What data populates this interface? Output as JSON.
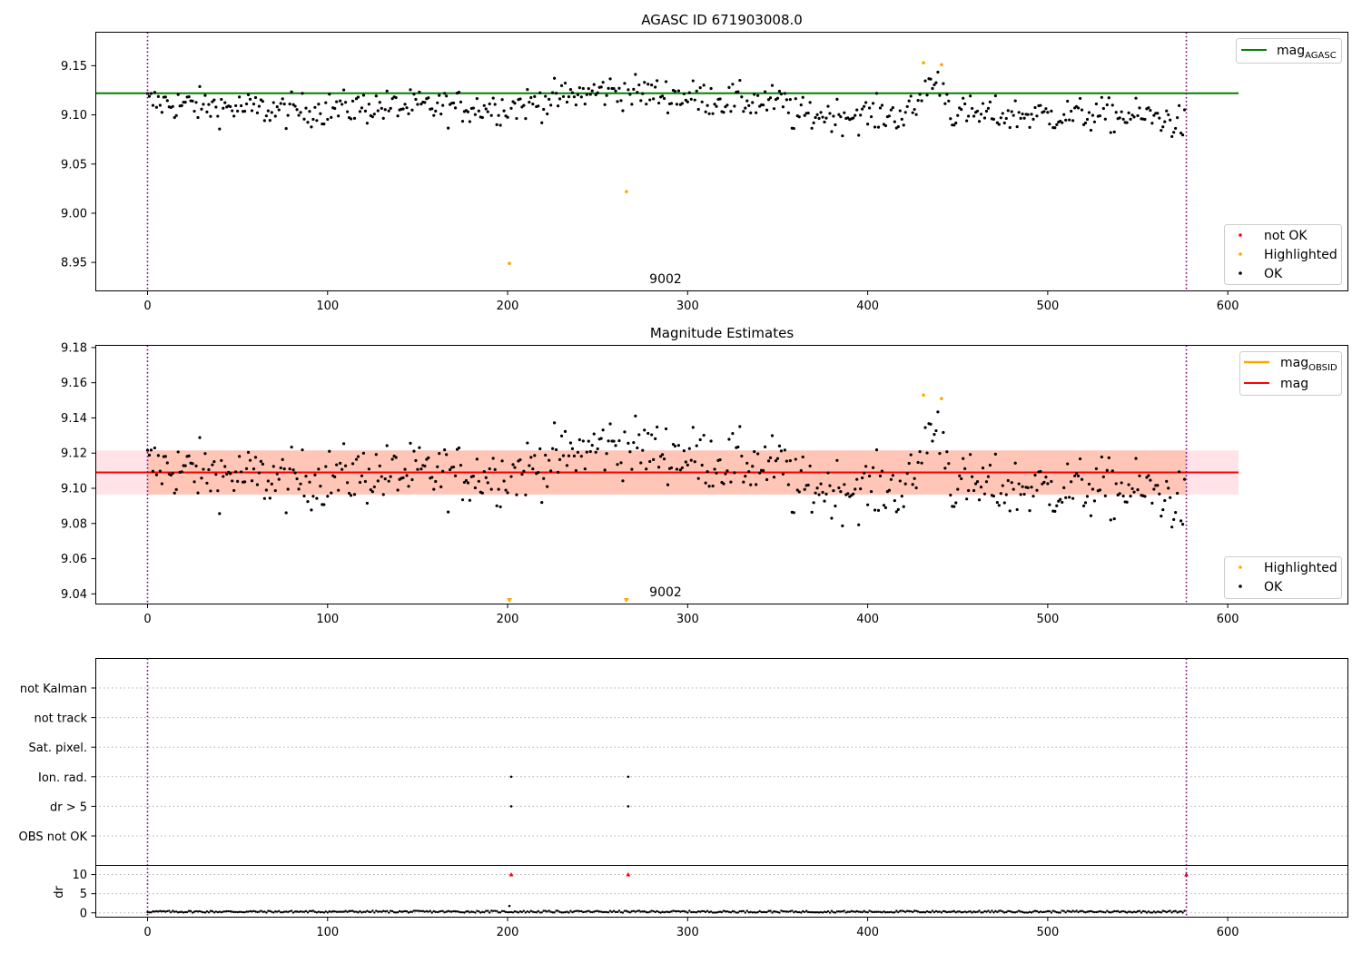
{
  "figure": {
    "title": "AGASC ID 671903008.0",
    "obsid_label": "9002"
  },
  "colors": {
    "ok": "#000000",
    "highlighted": "#ffa500",
    "not_ok": "#ff0000",
    "mag_agasc_line": "#008000",
    "mag_line": "#ff0000",
    "mag_obsid_line": "#ffa500",
    "band_mag_obsid": "#ffa07a",
    "band_mag": "#ffc0cb",
    "obsid_boundary": "#800080",
    "grid": "#b0b0b0"
  },
  "chart_data": [
    {
      "type": "scatter",
      "title": "AGASC ID 671903008.0",
      "xlabel": "",
      "ylabel": "",
      "xlim": [
        -29,
        667
      ],
      "ylim": [
        8.9215,
        9.1845
      ],
      "xticks": [
        0,
        100,
        200,
        300,
        400,
        500,
        600
      ],
      "yticks": [
        8.95,
        9.0,
        9.05,
        9.1,
        9.15
      ],
      "ytick_labels": [
        "8.95",
        "9.00",
        "9.05",
        "9.10",
        "9.15"
      ],
      "hlines": [
        {
          "name": "mag_AGASC",
          "y": 9.122,
          "x_range": [
            -29,
            606
          ],
          "color": "#008000"
        }
      ],
      "vlines": [
        0,
        577
      ],
      "annotations": [
        {
          "text": "9002",
          "x": 288,
          "y": 8.926
        }
      ],
      "legends": [
        {
          "position": "upper right",
          "entries": [
            {
              "label": "mag",
              "subscript": "AGASC",
              "style": "line",
              "color": "#008000"
            }
          ]
        },
        {
          "position": "lower right",
          "entries": [
            {
              "label": "not OK",
              "style": "marker",
              "color": "#ff0000"
            },
            {
              "label": "Highlighted",
              "style": "marker",
              "color": "#ffa500"
            },
            {
              "label": "OK",
              "style": "marker",
              "color": "#000000"
            }
          ]
        }
      ],
      "series": [
        {
          "name": "OK",
          "color": "#000000",
          "generated": {
            "count": 577,
            "x_start": 0,
            "x_end": 576,
            "exclude_x": [
              201,
              266,
              431,
              441
            ],
            "profile": [
              [
                0,
                9.113
              ],
              [
                40,
                9.108
              ],
              [
                80,
                9.104
              ],
              [
                120,
                9.108
              ],
              [
                160,
                9.108
              ],
              [
                200,
                9.108
              ],
              [
                225,
                9.116
              ],
              [
                255,
                9.125
              ],
              [
                285,
                9.121
              ],
              [
                320,
                9.115
              ],
              [
                355,
                9.112
              ],
              [
                358,
                9.1
              ],
              [
                420,
                9.1
              ],
              [
                428,
                9.108
              ],
              [
                432,
                9.132
              ],
              [
                442,
                9.132
              ],
              [
                446,
                9.102
              ],
              [
                470,
                9.1
              ],
              [
                520,
                9.1
              ],
              [
                560,
                9.098
              ],
              [
                576,
                9.09
              ]
            ],
            "scatter": 0.0085
          }
        },
        {
          "name": "Highlighted",
          "color": "#ffa500",
          "x": [
            201,
            266,
            431,
            441
          ],
          "y": [
            8.949,
            9.022,
            9.153,
            9.151
          ]
        },
        {
          "name": "not OK",
          "color": "#ff0000",
          "x": [],
          "y": []
        }
      ]
    },
    {
      "type": "scatter",
      "title": "Magnitude Estimates",
      "xlabel": "",
      "ylabel": "",
      "xlim": [
        -29,
        667
      ],
      "ylim": [
        9.0345,
        9.1815
      ],
      "xticks": [
        0,
        100,
        200,
        300,
        400,
        500,
        600
      ],
      "yticks": [
        9.04,
        9.06,
        9.08,
        9.1,
        9.12,
        9.14,
        9.16,
        9.18
      ],
      "ytick_labels": [
        "9.04",
        "9.06",
        "9.08",
        "9.10",
        "9.12",
        "9.14",
        "9.16",
        "9.18"
      ],
      "hlines": [
        {
          "name": "mag_OBSID",
          "y": 9.109,
          "x_range": [
            0,
            577
          ],
          "color": "#ffa500"
        },
        {
          "name": "mag",
          "y": 9.109,
          "x_range": [
            -29,
            606
          ],
          "color": "#ff0000"
        }
      ],
      "bands": [
        {
          "name": "mag",
          "y_range": [
            9.0965,
            9.1215
          ],
          "x_range": [
            -29,
            606
          ],
          "color": "#ffc0cb"
        },
        {
          "name": "mag_OBSID",
          "y_range": [
            9.0965,
            9.1215
          ],
          "x_range": [
            0,
            577
          ],
          "color": "#ffa07a"
        }
      ],
      "vlines": [
        0,
        577
      ],
      "annotations": [
        {
          "text": "9002",
          "x": 288,
          "y": 9.038
        }
      ],
      "clipped_markers": [
        {
          "x": 201,
          "color": "#ffa500"
        },
        {
          "x": 266,
          "color": "#ffa500"
        }
      ],
      "legends": [
        {
          "position": "upper right",
          "entries": [
            {
              "label": "mag",
              "subscript": "OBSID",
              "style": "line",
              "color": "#ffa500"
            },
            {
              "label": "mag",
              "style": "line",
              "color": "#ff0000"
            }
          ]
        },
        {
          "position": "lower right",
          "entries": [
            {
              "label": "Highlighted",
              "style": "marker",
              "color": "#ffa500"
            },
            {
              "label": "OK",
              "style": "marker",
              "color": "#000000"
            }
          ]
        }
      ],
      "series": [
        {
          "name": "OK",
          "color": "#000000",
          "generated_from": "same as top panel OK series"
        },
        {
          "name": "Highlighted",
          "color": "#ffa500",
          "x": [
            431,
            441
          ],
          "y": [
            9.153,
            9.151
          ]
        }
      ]
    },
    {
      "type": "scatter",
      "title": "",
      "xlabel": "",
      "xlim": [
        -29,
        667
      ],
      "xticks": [
        0,
        100,
        200,
        300,
        400,
        500,
        600
      ],
      "flags": {
        "categories": [
          "not Kalman",
          "not track",
          "Sat. pixel.",
          "Ion. rad.",
          "dr > 5",
          "OBS not OK"
        ],
        "points": [
          {
            "category": "Ion. rad.",
            "x": [
              202,
              267
            ]
          },
          {
            "category": "dr > 5",
            "x": [
              202,
              267
            ]
          }
        ]
      },
      "dr": {
        "ylabel": "dr",
        "ylim": [
          -1,
          12.5
        ],
        "yticks": [
          0,
          5,
          10
        ],
        "ytick_labels": [
          "0",
          "5",
          "10"
        ],
        "generated": {
          "count": 577,
          "x_start": 0,
          "x_end": 576,
          "base": 0.3,
          "spread": 0.25
        },
        "outliers": [
          {
            "x": 201,
            "y": 1.8
          }
        ],
        "clipped_markers": [
          {
            "x": 202,
            "color": "#ff0000"
          },
          {
            "x": 267,
            "color": "#ff0000"
          },
          {
            "x": 577,
            "color": "#ff0000"
          }
        ]
      },
      "vlines": [
        0,
        577
      ]
    }
  ]
}
